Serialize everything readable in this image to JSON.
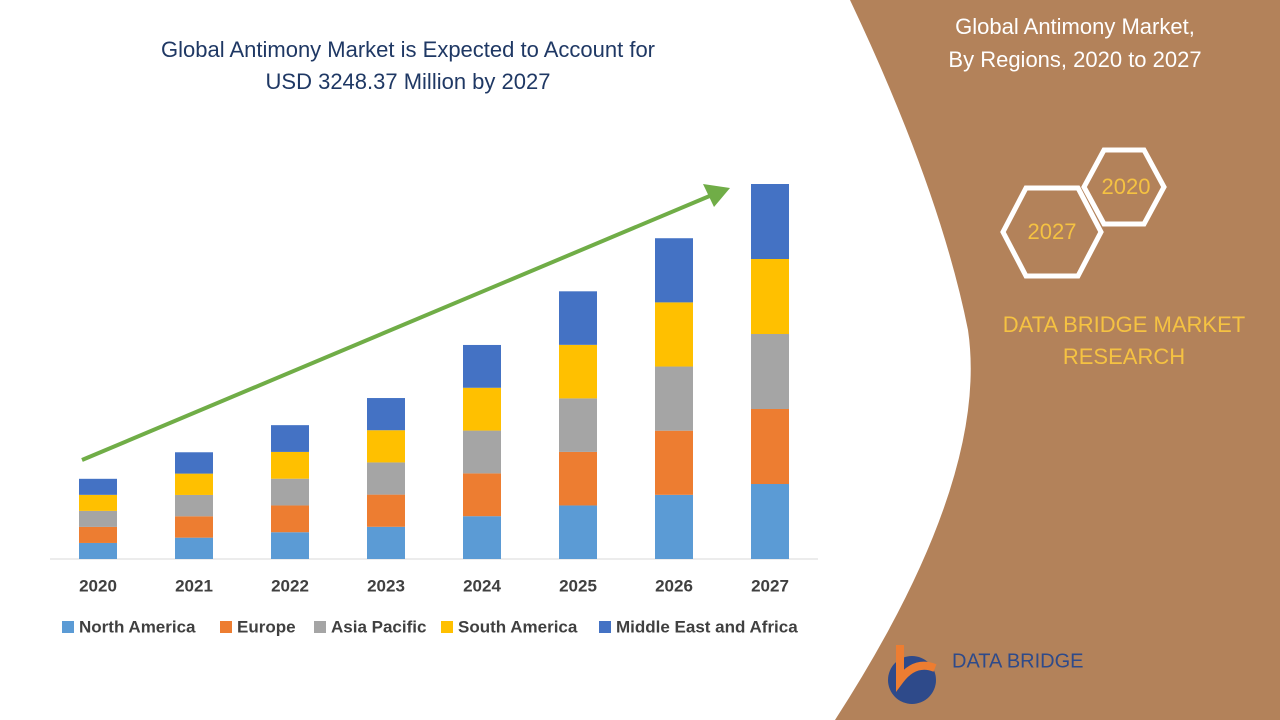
{
  "chart_data": {
    "type": "stacked-bar",
    "title": "Global Antimony Market is Expected to Account for",
    "subtitle": "USD 3248.37 Million by 2027",
    "categories": [
      "2020",
      "2021",
      "2022",
      "2023",
      "2024",
      "2025",
      "2026",
      "2027"
    ],
    "series": [
      {
        "name": "North America",
        "color": "#5b9bd5",
        "values": [
          139,
          185,
          232,
          279,
          371,
          464,
          556,
          650
        ]
      },
      {
        "name": "Europe",
        "color": "#ed7d31",
        "values": [
          139,
          185,
          232,
          279,
          371,
          464,
          556,
          650
        ]
      },
      {
        "name": "Asia Pacific",
        "color": "#a5a5a5",
        "values": [
          139,
          185,
          232,
          279,
          371,
          464,
          556,
          650
        ]
      },
      {
        "name": "South America",
        "color": "#ffc000",
        "values": [
          139,
          185,
          232,
          279,
          371,
          464,
          556,
          650
        ]
      },
      {
        "name": "Middle East and Africa",
        "color": "#4472c4",
        "values": [
          139,
          185,
          232,
          279,
          371,
          464,
          556,
          650
        ]
      }
    ]
  },
  "panel": {
    "title": "Global Antimony Market,",
    "subtitle": "By Regions, 2020 to 2027",
    "hex_top": "2020",
    "hex_bottom": "2027",
    "brand": "DATA BRIDGE MARKET",
    "brand_line2": "RESEARCH",
    "logo": "DATA BRIDGE"
  }
}
